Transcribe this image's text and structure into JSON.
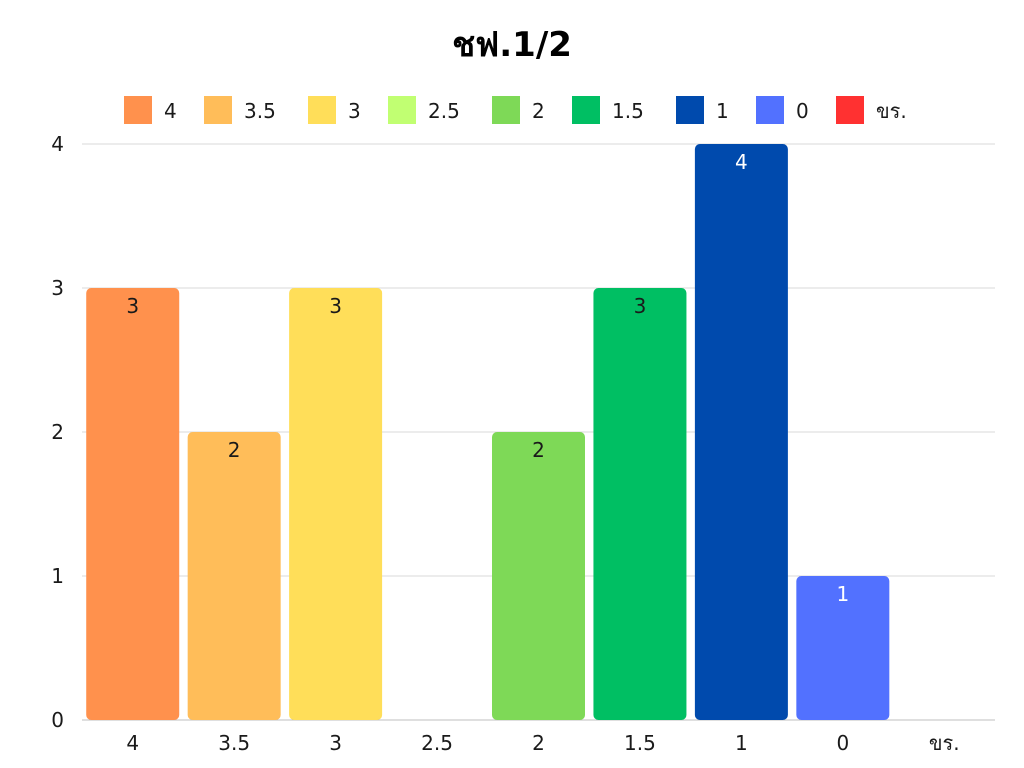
{
  "chart_data": {
    "type": "bar",
    "title": "ชฟ.1/2",
    "xlabel": "",
    "ylabel": "",
    "categories": [
      "4",
      "3.5",
      "3",
      "2.5",
      "2",
      "1.5",
      "1",
      "0",
      "ขร."
    ],
    "values": [
      3,
      2,
      3,
      0,
      2,
      3,
      4,
      1,
      0
    ],
    "colors": [
      "#ff914d",
      "#ffbd59",
      "#ffde59",
      "#c1ff72",
      "#7ed957",
      "#00bf63",
      "#004aad",
      "#5271ff",
      "#ff3131"
    ],
    "label_colors": [
      "#1a1a1a",
      "#1a1a1a",
      "#1a1a1a",
      "#1a1a1a",
      "#1a1a1a",
      "#1a1a1a",
      "#ffffff",
      "#ffffff",
      "#ffffff"
    ],
    "ylim": [
      0,
      4
    ],
    "yticks": [
      "0",
      "1",
      "2",
      "3",
      "4"
    ],
    "grid": true,
    "legend_position": "top",
    "legend": [
      "4",
      "3.5",
      "3",
      "2.5",
      "2",
      "1.5",
      "1",
      "0",
      "ขร."
    ],
    "gridline_color": "#d9d9d9"
  }
}
